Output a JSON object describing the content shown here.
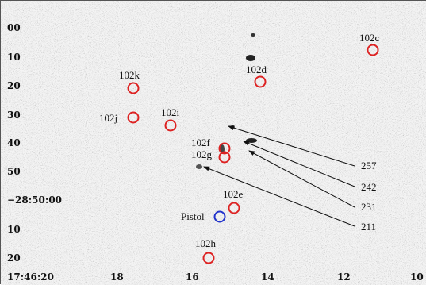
{
  "y_axis_labels": [
    "00",
    "10",
    "20",
    "30",
    "40",
    "50",
    "−28:50:00",
    "10",
    "20"
  ],
  "x_axis_labels": [
    "17:46:20",
    "18",
    "16",
    "14",
    "12",
    "10"
  ],
  "sources": [
    {
      "id": "102c",
      "color": "#dd2222"
    },
    {
      "id": "102d",
      "color": "#dd2222"
    },
    {
      "id": "102k",
      "color": "#dd2222"
    },
    {
      "id": "102j",
      "color": "#dd2222"
    },
    {
      "id": "102i",
      "color": "#dd2222"
    },
    {
      "id": "102f",
      "color": "#dd2222"
    },
    {
      "id": "102g",
      "color": "#dd2222"
    },
    {
      "id": "102e",
      "color": "#dd2222"
    },
    {
      "id": "Pistol",
      "color": "#2233cc"
    },
    {
      "id": "102h",
      "color": "#dd2222"
    }
  ],
  "pointer_labels": [
    "257",
    "242",
    "231",
    "211"
  ]
}
